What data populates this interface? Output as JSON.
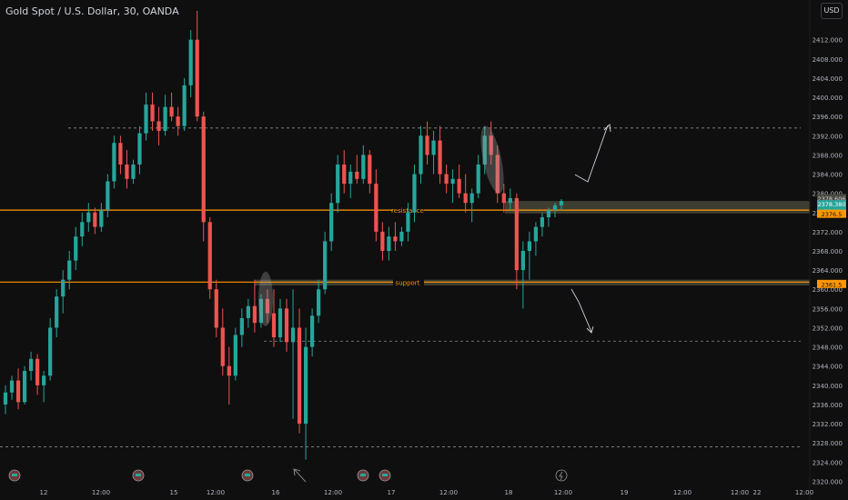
{
  "header": {
    "title": "Gold Spot / U.S. Dollar, 30, OANDA"
  },
  "currency_button": "USD",
  "colors": {
    "bg": "#0f0f0f",
    "up": "#26a69a",
    "down": "#ef5350",
    "level": "#ff9800",
    "zone": "#5b5b4a",
    "axis_text": "#b2b5be"
  },
  "chart_data": {
    "type": "candlestick",
    "title": "Gold Spot / U.S. Dollar, 30, OANDA",
    "ylim": [
      2318,
      2418
    ],
    "y_ticks": [
      2320,
      2324,
      2328,
      2332,
      2336,
      2340,
      2344,
      2348,
      2352,
      2356,
      2360,
      2364,
      2368,
      2372,
      2376,
      2380,
      2384,
      2388,
      2392,
      2396,
      2400,
      2404,
      2408,
      2412
    ],
    "x_ticks": [
      "12",
      "12:00",
      "15",
      "12:00",
      "16",
      "12:00",
      "17",
      "12:00",
      "18",
      "12:00",
      "19",
      "12:00",
      "12:00",
      "22",
      "12:00"
    ],
    "levels": [
      {
        "label": "resistance",
        "price": 2376.5
      },
      {
        "label": "support",
        "price": 2361.5
      }
    ],
    "zones": [
      {
        "from": 2375.8,
        "to": 2378.4
      },
      {
        "from": 2360.8,
        "to": 2362.0
      }
    ],
    "reference_lines": [
      2393.6,
      2349.2,
      2327.2
    ],
    "price_tags": [
      {
        "text": "2378.606"
      },
      {
        "text": "2378.380",
        "sub": "06:08"
      },
      {
        "text": "2376.5"
      },
      {
        "text": "2361.5"
      }
    ],
    "ohlc": [
      [
        2336.0,
        2340.0,
        2334.0,
        2338.5
      ],
      [
        2338.5,
        2342.0,
        2337.0,
        2341.0
      ],
      [
        2341.0,
        2343.5,
        2335.0,
        2336.5
      ],
      [
        2336.5,
        2344.0,
        2336.0,
        2343.0
      ],
      [
        2343.0,
        2347.0,
        2341.0,
        2345.5
      ],
      [
        2345.5,
        2346.5,
        2338.0,
        2340.0
      ],
      [
        2340.0,
        2343.0,
        2336.5,
        2342.0
      ],
      [
        2342.0,
        2354.0,
        2341.0,
        2352.0
      ],
      [
        2352.0,
        2360.0,
        2350.0,
        2358.5
      ],
      [
        2358.5,
        2364.0,
        2355.0,
        2362.0
      ],
      [
        2362.0,
        2368.0,
        2360.0,
        2366.0
      ],
      [
        2366.0,
        2373.0,
        2364.0,
        2371.0
      ],
      [
        2371.0,
        2376.0,
        2369.0,
        2374.0
      ],
      [
        2374.0,
        2378.0,
        2372.0,
        2376.0
      ],
      [
        2376.0,
        2377.0,
        2371.5,
        2373.0
      ],
      [
        2373.0,
        2378.0,
        2372.0,
        2376.5
      ],
      [
        2376.5,
        2384.0,
        2375.0,
        2382.5
      ],
      [
        2382.5,
        2392.0,
        2381.0,
        2390.5
      ],
      [
        2390.5,
        2392.0,
        2384.0,
        2386.0
      ],
      [
        2386.0,
        2389.0,
        2381.0,
        2383.0
      ],
      [
        2383.0,
        2387.0,
        2382.0,
        2386.0
      ],
      [
        2386.0,
        2394.0,
        2384.0,
        2392.5
      ],
      [
        2392.5,
        2401.0,
        2391.0,
        2398.5
      ],
      [
        2398.5,
        2401.0,
        2393.0,
        2395.0
      ],
      [
        2395.0,
        2398.0,
        2390.0,
        2393.0
      ],
      [
        2393.0,
        2400.5,
        2392.0,
        2398.0
      ],
      [
        2398.0,
        2401.0,
        2395.0,
        2396.0
      ],
      [
        2396.0,
        2398.0,
        2392.0,
        2394.0
      ],
      [
        2394.0,
        2404.0,
        2393.0,
        2402.5
      ],
      [
        2402.5,
        2414.0,
        2400.0,
        2412.0
      ],
      [
        2412.0,
        2418.0,
        2395.0,
        2396.0
      ],
      [
        2396.0,
        2397.0,
        2370.0,
        2374.0
      ],
      [
        2374.0,
        2375.0,
        2358.0,
        2360.0
      ],
      [
        2360.0,
        2362.0,
        2350.0,
        2352.0
      ],
      [
        2352.0,
        2356.0,
        2342.0,
        2344.0
      ],
      [
        2344.0,
        2348.0,
        2336.0,
        2342.0
      ],
      [
        2342.0,
        2352.0,
        2341.0,
        2350.5
      ],
      [
        2350.5,
        2356.0,
        2348.0,
        2354.0
      ],
      [
        2354.0,
        2358.0,
        2352.0,
        2356.5
      ],
      [
        2356.5,
        2362.0,
        2351.0,
        2353.0
      ],
      [
        2353.0,
        2359.0,
        2352.0,
        2358.0
      ],
      [
        2358.0,
        2360.0,
        2353.0,
        2355.0
      ],
      [
        2355.0,
        2360.0,
        2348.0,
        2350.0
      ],
      [
        2350.0,
        2358.0,
        2349.0,
        2356.0
      ],
      [
        2356.0,
        2358.0,
        2347.0,
        2349.0
      ],
      [
        2349.0,
        2360.0,
        2333.0,
        2352.0
      ],
      [
        2352.0,
        2356.0,
        2330.0,
        2332.0
      ],
      [
        2332.0,
        2352.0,
        2324.5,
        2348.0
      ],
      [
        2348.0,
        2356.0,
        2346.0,
        2354.5
      ],
      [
        2354.5,
        2362.0,
        2353.0,
        2360.0
      ],
      [
        2360.0,
        2372.0,
        2359.0,
        2370.0
      ],
      [
        2370.0,
        2380.0,
        2368.0,
        2378.0
      ],
      [
        2378.0,
        2388.0,
        2376.0,
        2386.0
      ],
      [
        2386.0,
        2389.0,
        2380.0,
        2382.0
      ],
      [
        2382.0,
        2386.0,
        2379.0,
        2384.5
      ],
      [
        2384.5,
        2388.0,
        2382.0,
        2383.0
      ],
      [
        2383.0,
        2390.0,
        2382.0,
        2388.0
      ],
      [
        2388.0,
        2389.0,
        2380.0,
        2382.0
      ],
      [
        2382.0,
        2385.0,
        2370.0,
        2372.0
      ],
      [
        2372.0,
        2374.0,
        2366.0,
        2368.0
      ],
      [
        2368.0,
        2373.0,
        2366.0,
        2371.0
      ],
      [
        2371.0,
        2374.0,
        2368.0,
        2370.0
      ],
      [
        2370.0,
        2373.0,
        2369.0,
        2372.0
      ],
      [
        2372.0,
        2378.0,
        2370.0,
        2376.0
      ],
      [
        2376.0,
        2386.0,
        2374.0,
        2384.0
      ],
      [
        2384.0,
        2394.0,
        2382.0,
        2392.0
      ],
      [
        2392.0,
        2395.0,
        2386.0,
        2388.0
      ],
      [
        2388.0,
        2393.0,
        2384.0,
        2391.0
      ],
      [
        2391.0,
        2394.0,
        2382.0,
        2384.0
      ],
      [
        2384.0,
        2386.0,
        2380.0,
        2382.0
      ],
      [
        2382.0,
        2385.0,
        2378.0,
        2383.0
      ],
      [
        2383.0,
        2386.0,
        2379.0,
        2380.0
      ],
      [
        2380.0,
        2384.0,
        2376.0,
        2378.0
      ],
      [
        2378.0,
        2381.0,
        2374.0,
        2380.0
      ],
      [
        2380.0,
        2388.0,
        2379.0,
        2386.0
      ],
      [
        2386.0,
        2394.0,
        2384.0,
        2392.0
      ],
      [
        2392.0,
        2395.0,
        2386.0,
        2388.0
      ],
      [
        2388.0,
        2390.0,
        2378.0,
        2380.0
      ],
      [
        2380.0,
        2382.0,
        2376.0,
        2378.0
      ],
      [
        2378.0,
        2381.0,
        2376.5,
        2379.0
      ],
      [
        2379.0,
        2380.0,
        2360.0,
        2364.0
      ],
      [
        2364.0,
        2370.0,
        2356.0,
        2368.0
      ],
      [
        2368.0,
        2372.0,
        2362.0,
        2370.0
      ],
      [
        2370.0,
        2374.0,
        2367.0,
        2373.0
      ],
      [
        2373.0,
        2376.0,
        2371.0,
        2375.0
      ],
      [
        2375.0,
        2377.0,
        2373.0,
        2376.5
      ],
      [
        2376.5,
        2378.0,
        2375.0,
        2377.5
      ],
      [
        2377.5,
        2378.8,
        2376.5,
        2378.4
      ]
    ]
  },
  "annotations": {
    "resistance_label": "resistance",
    "support_label": "support"
  }
}
